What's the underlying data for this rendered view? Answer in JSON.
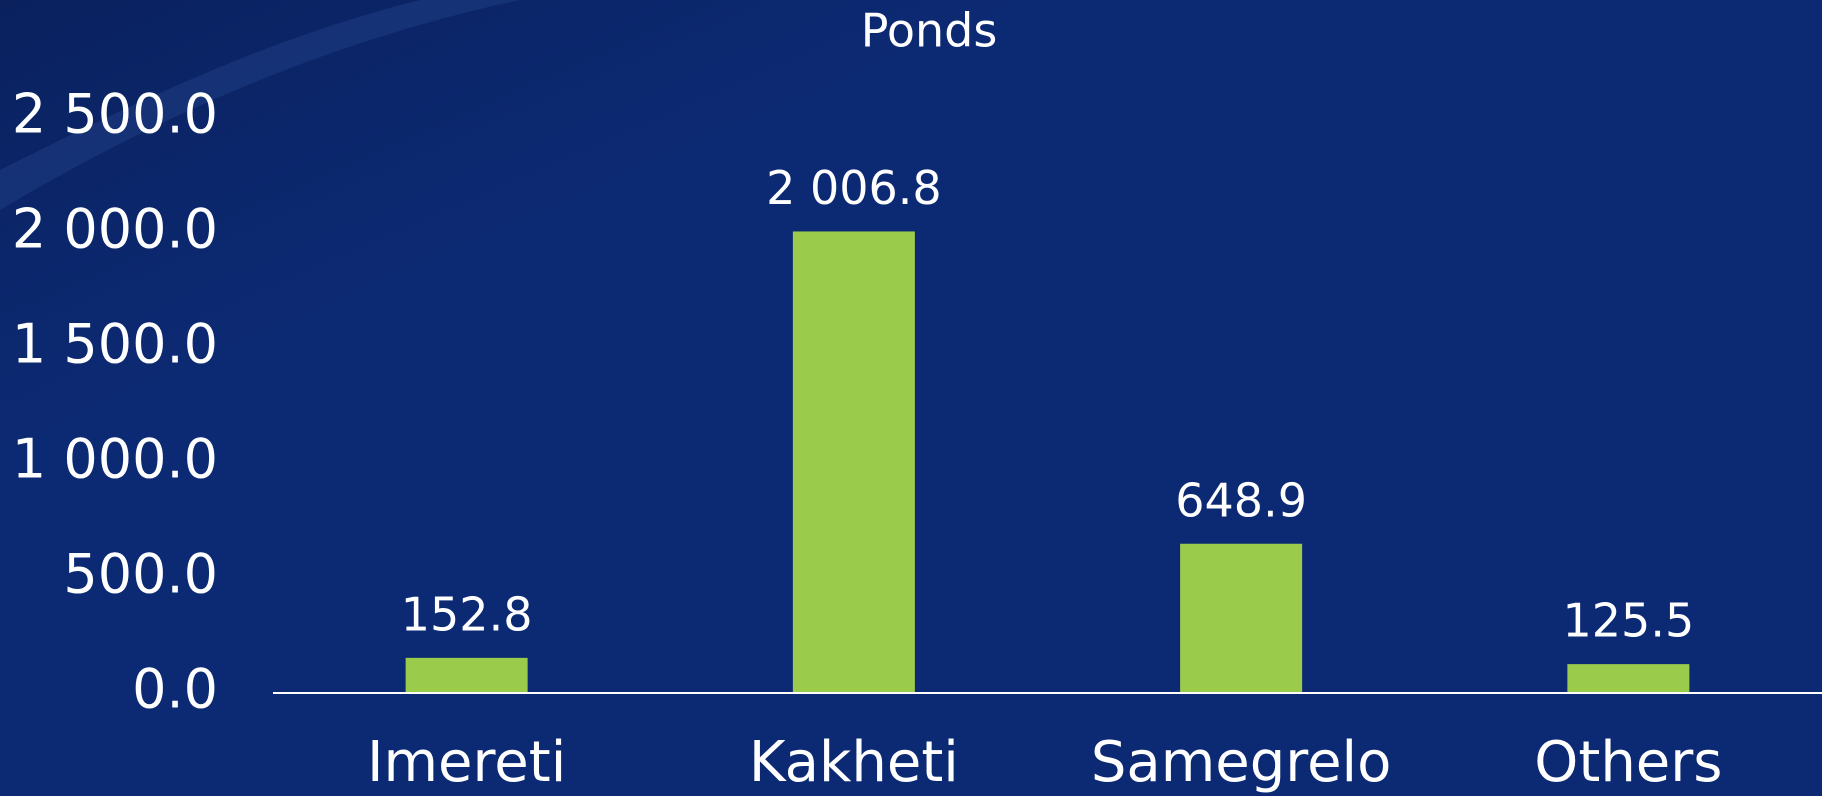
{
  "chart_data": {
    "type": "bar",
    "title": "Ponds",
    "categories": [
      "Imereti",
      "Kakheti",
      "Samegrelo",
      "Others"
    ],
    "values": [
      152.8,
      2006.8,
      648.9,
      125.5
    ],
    "value_labels": [
      "152.8",
      "2 006.8",
      "648.9",
      "125.5"
    ],
    "color": "#9bcb4b",
    "ylim": [
      0,
      2500
    ],
    "yticks": [
      {
        "value": 0,
        "label": "0.0"
      },
      {
        "value": 500,
        "label": "500.0"
      },
      {
        "value": 1000,
        "label": "1 000.0"
      },
      {
        "value": 1500,
        "label": "1 500.0"
      },
      {
        "value": 2000,
        "label": "2 000.0"
      },
      {
        "value": 2500,
        "label": "2 500.0"
      }
    ],
    "grid": false
  }
}
